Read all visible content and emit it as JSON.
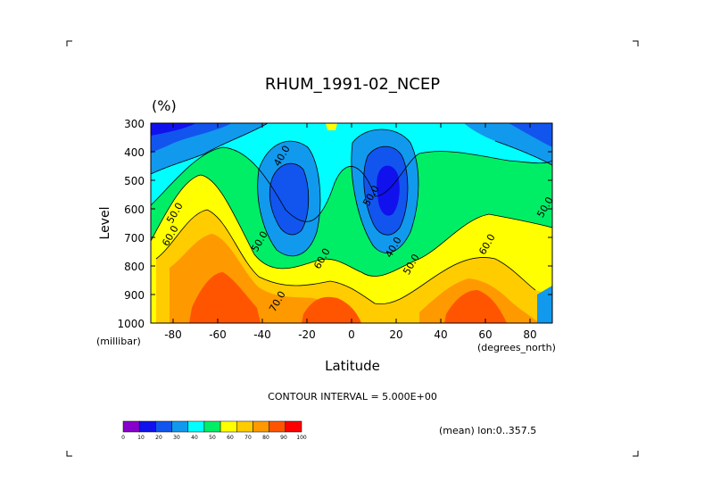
{
  "figure": {
    "title": "RHUM_1991-02_NCEP",
    "units": "(%)",
    "contour_interval_text": "CONTOUR INTERVAL = 5.000E+00",
    "mean_note": "(mean) lon:0..357.5"
  },
  "chart_data": {
    "type": "heatmap",
    "title": "RHUM_1991-02_NCEP",
    "xlabel": "Latitude",
    "xunits": "(degrees_north)",
    "ylabel": "Level",
    "yunits": "(millibar)",
    "xlim": [
      -90,
      90
    ],
    "ylim": [
      1000,
      300
    ],
    "x_ticks": [
      -80,
      -60,
      -40,
      -20,
      0,
      20,
      40,
      60,
      80
    ],
    "y_ticks": [
      300,
      400,
      500,
      600,
      700,
      800,
      900,
      1000
    ],
    "contour_interval": 5,
    "contour_labels": [
      {
        "text": "40.0",
        "lat": -30,
        "level": 420
      },
      {
        "text": "50.0",
        "lat": 10,
        "level": 560
      },
      {
        "text": "40.0",
        "lat": 20,
        "level": 740
      },
      {
        "text": "50.0",
        "lat": 28,
        "level": 800
      },
      {
        "text": "60.0",
        "lat": -12,
        "level": 780
      },
      {
        "text": "50.0",
        "lat": -40,
        "level": 720
      },
      {
        "text": "50.0",
        "lat": -78,
        "level": 620
      },
      {
        "text": "60.0",
        "lat": -80,
        "level": 700
      },
      {
        "text": "70.0",
        "lat": -32,
        "level": 930
      },
      {
        "text": "60.0",
        "lat": 62,
        "level": 730
      },
      {
        "text": "50.0",
        "lat": 88,
        "level": 600
      }
    ],
    "colorbar": {
      "ticks": [
        "0",
        "10",
        "20",
        "30",
        "40",
        "50",
        "60",
        "70",
        "80",
        "90",
        "100"
      ],
      "colors": [
        "#8800cc",
        "#1111ee",
        "#1155ee",
        "#1199ee",
        "#00ffff",
        "#00ee66",
        "#ffff00",
        "#ffcc00",
        "#ff9900",
        "#ff5500",
        "#ff0000"
      ]
    }
  }
}
